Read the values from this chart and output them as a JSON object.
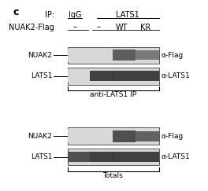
{
  "panel_label": "c",
  "bg_color": "#ffffff",
  "fig_width": 2.64,
  "fig_height": 2.43,
  "dpi": 100,
  "header_ip_label": "IP:",
  "header_igg": "IgG",
  "header_lats1": "LATS1",
  "header_nuak2flag": "NUAK2-Flag",
  "header_minus1": "–",
  "header_minus2": "–",
  "header_wt": "WT",
  "header_kr": "KR",
  "section1_label": "anti-LATS1 IP",
  "section2_label": "Totals",
  "row_labels": [
    "NUAK2",
    "LATS1",
    "NUAK2",
    "LATS1"
  ],
  "row_right_labels": [
    "α-Flag",
    "α-LATS1",
    "α-Flag",
    "α-LATS1"
  ],
  "gel_bg": "#d8d8d8",
  "gel_border": "#555555",
  "font_size_panel": 9,
  "font_size_header": 7,
  "font_size_section": 6.5,
  "font_size_row": 6.5
}
